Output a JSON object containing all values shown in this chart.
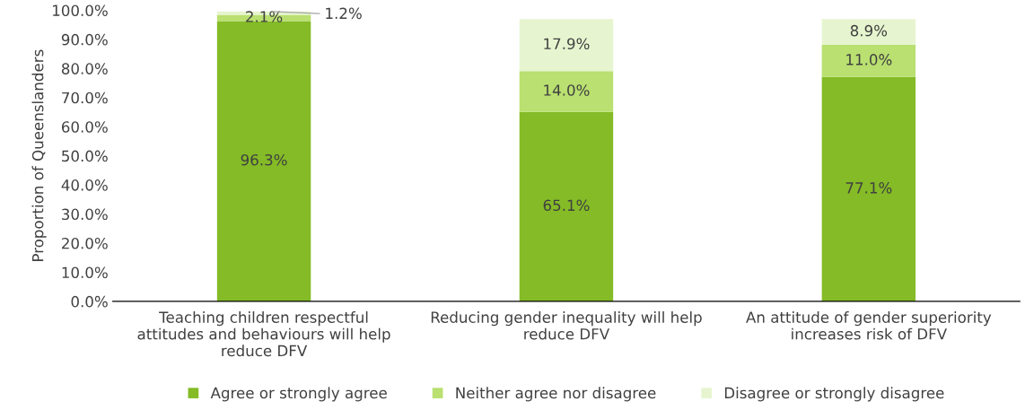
{
  "chart_data": {
    "type": "bar",
    "stacked": true,
    "ylabel": "Proportion of Queenslanders",
    "categories": [
      "Teaching children respectful\nattitudes and behaviours will help\nreduce DFV",
      "Reducing gender inequality will help\nreduce DFV",
      "An attitude of gender superiority\nincreases risk of DFV"
    ],
    "series": [
      {
        "name": "Agree or strongly agree",
        "color": "#84bb26",
        "values": [
          96.3,
          65.1,
          77.1
        ],
        "value_labels": [
          "96.3%",
          "65.1%",
          "77.1%"
        ]
      },
      {
        "name": "Neither agree nor disagree",
        "color": "#b9e070",
        "values": [
          2.1,
          14.0,
          11.0
        ],
        "value_labels": [
          "2.1%",
          "14.0%",
          "11.0%"
        ]
      },
      {
        "name": "Disagree or strongly disagree",
        "color": "#e6f5cf",
        "values": [
          1.2,
          17.9,
          8.9
        ],
        "value_labels": [
          "1.2%",
          "17.9%",
          "8.9%"
        ]
      }
    ],
    "ylim": [
      0,
      100
    ],
    "yticks": [
      {
        "value": 0,
        "label": "0.0%"
      },
      {
        "value": 10,
        "label": "10.0%"
      },
      {
        "value": 20,
        "label": "20.0%"
      },
      {
        "value": 30,
        "label": "30.0%"
      },
      {
        "value": 40,
        "label": "40.0%"
      },
      {
        "value": 50,
        "label": "50.0%"
      },
      {
        "value": 60,
        "label": "60.0%"
      },
      {
        "value": 70,
        "label": "70.0%"
      },
      {
        "value": 80,
        "label": "80.0%"
      },
      {
        "value": 90,
        "label": "90.0%"
      },
      {
        "value": 100,
        "label": "100.0%"
      }
    ],
    "grid": false,
    "legend": "bottom"
  }
}
